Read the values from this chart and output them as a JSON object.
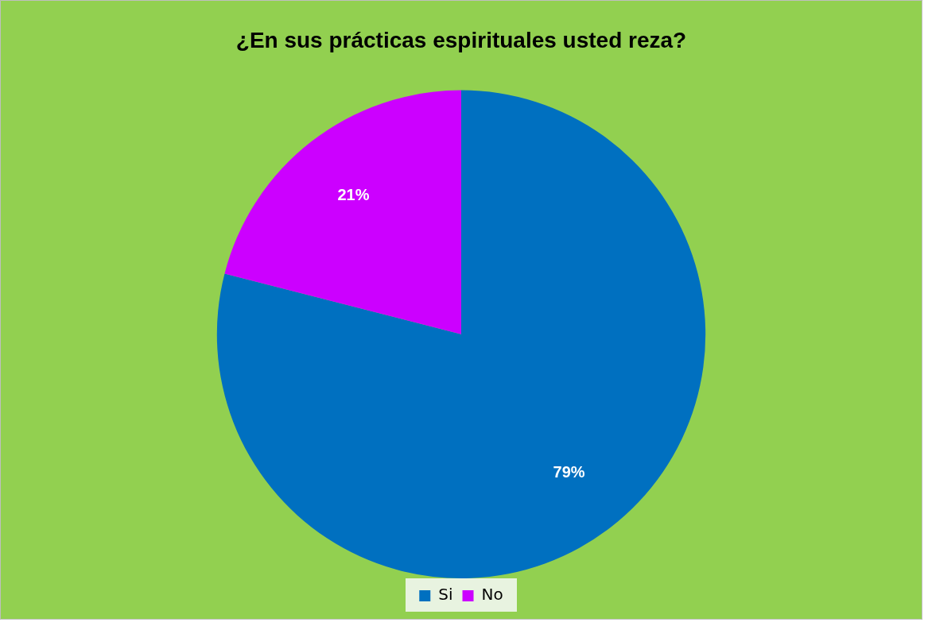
{
  "chart_data": {
    "type": "pie",
    "title": "¿En sus prácticas espirituales usted reza?",
    "categories": [
      "Si",
      "No"
    ],
    "values": [
      79,
      21
    ],
    "value_labels": [
      "79%",
      "21%"
    ],
    "colors": [
      "#0070c0",
      "#cc00ff"
    ],
    "legend": "bottom"
  }
}
